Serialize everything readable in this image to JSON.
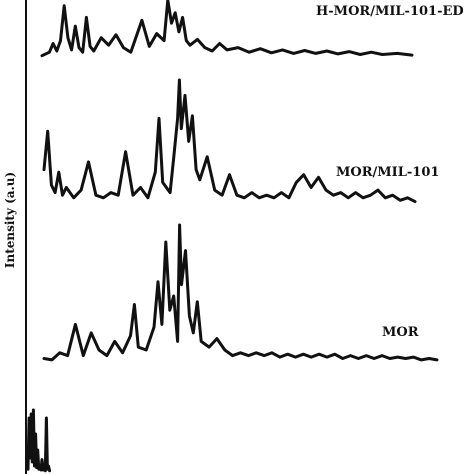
{
  "chart_data": {
    "type": "line",
    "ylabel": "Intensity (a.u)",
    "xlabel": "",
    "grid": false,
    "x_range": [
      0,
      100
    ],
    "y_range": [
      0,
      100
    ],
    "series": [
      {
        "name": "H-MOR/MIL-101-ED",
        "points": [
          [
            0,
            4
          ],
          [
            2,
            10
          ],
          [
            3,
            25
          ],
          [
            4,
            12
          ],
          [
            5,
            30
          ],
          [
            6,
            90
          ],
          [
            7,
            35
          ],
          [
            8,
            14
          ],
          [
            9,
            55
          ],
          [
            10,
            18
          ],
          [
            11,
            10
          ],
          [
            12,
            70
          ],
          [
            13,
            20
          ],
          [
            14,
            12
          ],
          [
            16,
            35
          ],
          [
            18,
            22
          ],
          [
            20,
            40
          ],
          [
            22,
            18
          ],
          [
            24,
            10
          ],
          [
            27,
            65
          ],
          [
            29,
            20
          ],
          [
            31,
            42
          ],
          [
            33,
            30
          ],
          [
            34,
            100
          ],
          [
            35,
            60
          ],
          [
            36,
            78
          ],
          [
            37,
            45
          ],
          [
            38,
            70
          ],
          [
            39,
            30
          ],
          [
            40,
            22
          ],
          [
            42,
            32
          ],
          [
            44,
            18
          ],
          [
            46,
            12
          ],
          [
            48,
            25
          ],
          [
            50,
            14
          ],
          [
            53,
            18
          ],
          [
            56,
            10
          ],
          [
            59,
            16
          ],
          [
            62,
            9
          ],
          [
            65,
            14
          ],
          [
            68,
            8
          ],
          [
            71,
            13
          ],
          [
            74,
            8
          ],
          [
            77,
            12
          ],
          [
            80,
            7
          ],
          [
            83,
            11
          ],
          [
            86,
            6
          ],
          [
            89,
            10
          ],
          [
            92,
            6
          ],
          [
            96,
            8
          ],
          [
            100,
            5
          ]
        ]
      },
      {
        "name": "MOR/MIL-101",
        "points": [
          [
            0,
            30
          ],
          [
            1,
            60
          ],
          [
            2,
            18
          ],
          [
            3,
            12
          ],
          [
            4,
            28
          ],
          [
            5,
            10
          ],
          [
            6,
            16
          ],
          [
            8,
            8
          ],
          [
            10,
            14
          ],
          [
            12,
            36
          ],
          [
            14,
            10
          ],
          [
            16,
            8
          ],
          [
            18,
            12
          ],
          [
            20,
            10
          ],
          [
            22,
            44
          ],
          [
            24,
            10
          ],
          [
            26,
            16
          ],
          [
            28,
            8
          ],
          [
            30,
            28
          ],
          [
            31,
            70
          ],
          [
            32,
            20
          ],
          [
            34,
            12
          ],
          [
            35,
            40
          ],
          [
            36,
            70
          ],
          [
            36.5,
            100
          ],
          [
            37,
            62
          ],
          [
            38,
            88
          ],
          [
            39,
            52
          ],
          [
            40,
            72
          ],
          [
            41,
            30
          ],
          [
            42,
            22
          ],
          [
            44,
            40
          ],
          [
            46,
            14
          ],
          [
            48,
            10
          ],
          [
            50,
            26
          ],
          [
            52,
            10
          ],
          [
            54,
            8
          ],
          [
            56,
            12
          ],
          [
            58,
            8
          ],
          [
            60,
            10
          ],
          [
            62,
            8
          ],
          [
            64,
            12
          ],
          [
            66,
            8
          ],
          [
            68,
            20
          ],
          [
            70,
            26
          ],
          [
            72,
            16
          ],
          [
            74,
            24
          ],
          [
            76,
            14
          ],
          [
            78,
            10
          ],
          [
            80,
            12
          ],
          [
            82,
            8
          ],
          [
            84,
            12
          ],
          [
            86,
            8
          ],
          [
            88,
            10
          ],
          [
            90,
            14
          ],
          [
            92,
            8
          ],
          [
            94,
            10
          ],
          [
            96,
            6
          ],
          [
            98,
            8
          ],
          [
            100,
            5
          ]
        ]
      },
      {
        "name": "MOR",
        "points": [
          [
            0,
            6
          ],
          [
            2,
            5
          ],
          [
            4,
            10
          ],
          [
            6,
            8
          ],
          [
            8,
            30
          ],
          [
            10,
            8
          ],
          [
            12,
            24
          ],
          [
            14,
            12
          ],
          [
            16,
            8
          ],
          [
            18,
            18
          ],
          [
            20,
            10
          ],
          [
            22,
            22
          ],
          [
            23,
            44
          ],
          [
            24,
            14
          ],
          [
            26,
            12
          ],
          [
            28,
            28
          ],
          [
            29,
            60
          ],
          [
            30,
            30
          ],
          [
            31,
            88
          ],
          [
            32,
            40
          ],
          [
            33,
            50
          ],
          [
            34,
            18
          ],
          [
            34.5,
            100
          ],
          [
            35,
            58
          ],
          [
            36,
            82
          ],
          [
            37,
            36
          ],
          [
            38,
            24
          ],
          [
            39,
            46
          ],
          [
            40,
            18
          ],
          [
            42,
            14
          ],
          [
            44,
            20
          ],
          [
            46,
            12
          ],
          [
            48,
            8
          ],
          [
            50,
            10
          ],
          [
            52,
            8
          ],
          [
            54,
            10
          ],
          [
            56,
            8
          ],
          [
            58,
            10
          ],
          [
            60,
            7
          ],
          [
            62,
            9
          ],
          [
            64,
            7
          ],
          [
            66,
            9
          ],
          [
            68,
            7
          ],
          [
            70,
            9
          ],
          [
            72,
            7
          ],
          [
            74,
            9
          ],
          [
            76,
            6
          ],
          [
            78,
            8
          ],
          [
            80,
            6
          ],
          [
            82,
            8
          ],
          [
            84,
            6
          ],
          [
            86,
            8
          ],
          [
            88,
            6
          ],
          [
            90,
            7
          ],
          [
            92,
            6
          ],
          [
            94,
            7
          ],
          [
            96,
            5
          ],
          [
            98,
            6
          ],
          [
            100,
            5
          ]
        ]
      },
      {
        "name": "",
        "points": [
          [
            0,
            6
          ],
          [
            2,
            70
          ],
          [
            4,
            20
          ],
          [
            6,
            75
          ],
          [
            8,
            15
          ],
          [
            10,
            80
          ],
          [
            12,
            10
          ],
          [
            14,
            50
          ],
          [
            16,
            8
          ],
          [
            18,
            30
          ],
          [
            20,
            6
          ],
          [
            22,
            10
          ],
          [
            24,
            5
          ],
          [
            26,
            18
          ],
          [
            28,
            5
          ],
          [
            30,
            8
          ],
          [
            32,
            4
          ],
          [
            34,
            70
          ],
          [
            36,
            6
          ],
          [
            38,
            10
          ],
          [
            40,
            4
          ]
        ]
      }
    ]
  }
}
